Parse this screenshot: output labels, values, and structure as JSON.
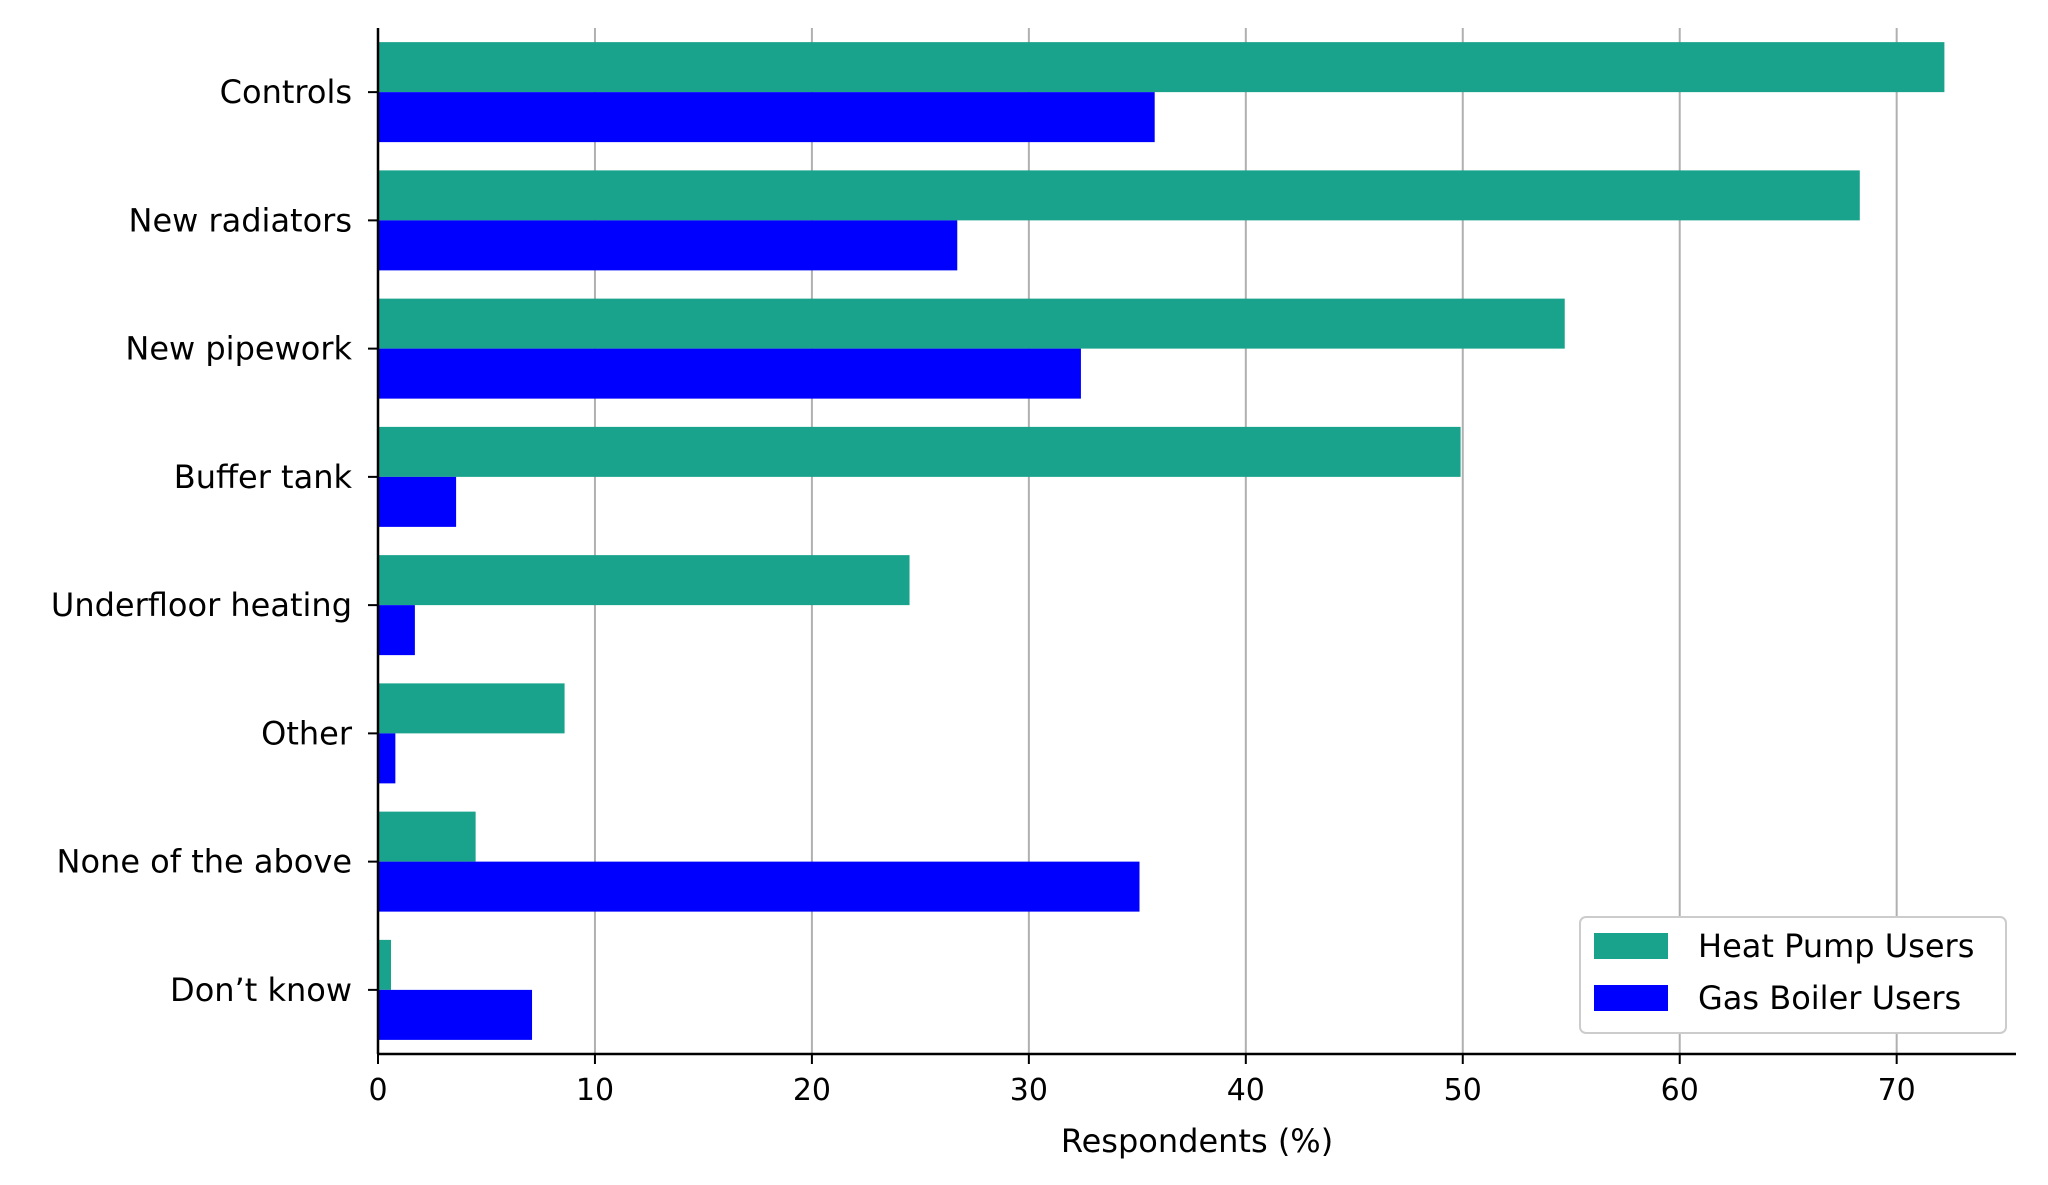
{
  "chart_data": {
    "type": "bar",
    "orientation": "horizontal",
    "categories": [
      "Controls",
      "New radiators",
      "New pipework",
      "Buffer tank",
      "Underfloor heating",
      "Other",
      "None of the above",
      "Don’t know"
    ],
    "series": [
      {
        "name": "Heat Pump Users",
        "color": "#1aa38c",
        "values": [
          72.2,
          68.3,
          54.7,
          49.9,
          24.5,
          8.6,
          4.5,
          0.6
        ]
      },
      {
        "name": "Gas Boiler Users",
        "color": "#0000ff",
        "values": [
          35.8,
          26.7,
          32.4,
          3.6,
          1.7,
          0.8,
          35.1,
          7.1
        ]
      }
    ],
    "xlabel": "Respondents (%)",
    "ylabel": "",
    "title": "",
    "xlim": [
      0,
      75.5
    ],
    "xticks": [
      0,
      10,
      20,
      30,
      40,
      50,
      60,
      70
    ],
    "xtick_labels": [
      "0",
      "10",
      "20",
      "30",
      "40",
      "50",
      "60",
      "70"
    ],
    "grid": "vertical",
    "legend_position": "bottom-right"
  }
}
